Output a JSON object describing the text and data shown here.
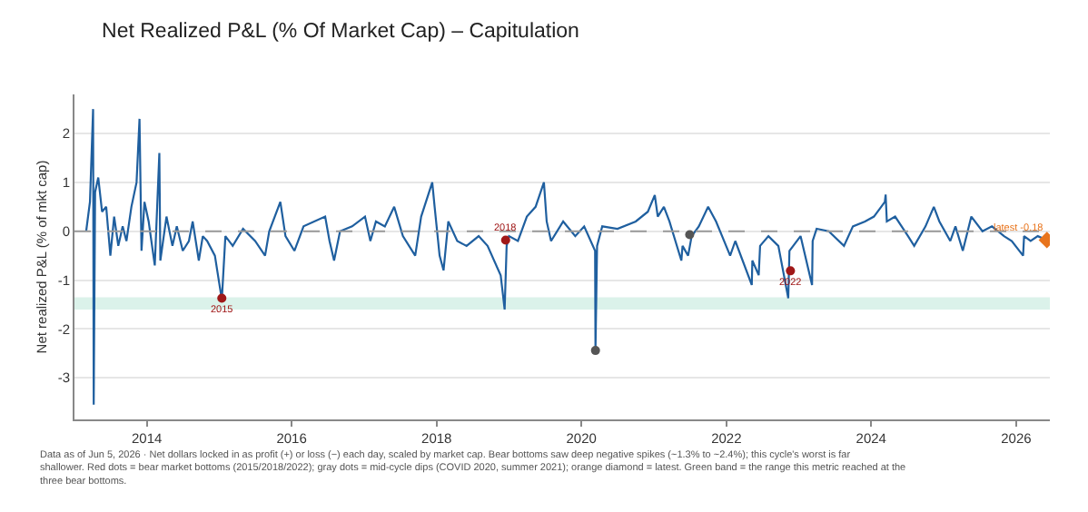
{
  "chart_data": {
    "type": "line",
    "title": "Net Realized P&L (% Of Market Cap) – Capitulation",
    "ylabel": "Net realized P&L (% of mkt cap)",
    "series": [
      {
        "color": "#1f5f9f",
        "marker": "none",
        "line_style": "solid",
        "x": [
          "2013-03-01",
          "2013-03-20",
          "2013-04-05",
          "2013-04-08",
          "2013-04-15",
          "2013-05-01",
          "2013-05-20",
          "2013-06-10",
          "2013-07-01",
          "2013-07-20",
          "2013-08-10",
          "2013-09-01",
          "2013-09-20",
          "2013-10-15",
          "2013-11-10",
          "2013-11-25",
          "2013-12-05",
          "2013-12-20",
          "2014-01-10",
          "2014-02-10",
          "2014-02-20",
          "2014-03-05",
          "2014-03-10",
          "2014-04-10",
          "2014-05-10",
          "2014-06-01",
          "2014-07-01",
          "2014-08-01",
          "2014-08-20",
          "2014-09-20",
          "2014-10-10",
          "2014-11-01",
          "2014-12-10",
          "2015-01-14",
          "2015-02-01",
          "2015-03-10",
          "2015-05-01",
          "2015-07-01",
          "2015-08-20",
          "2015-09-10",
          "2015-11-05",
          "2015-12-01",
          "2016-01-15",
          "2016-03-01",
          "2016-06-18",
          "2016-07-10",
          "2016-08-02",
          "2016-09-01",
          "2016-11-01",
          "2017-01-05",
          "2017-02-01",
          "2017-03-01",
          "2017-04-15",
          "2017-06-01",
          "2017-07-15",
          "2017-09-15",
          "2017-10-15",
          "2017-12-10",
          "2017-12-22",
          "2018-01-16",
          "2018-02-05",
          "2018-03-01",
          "2018-04-15",
          "2018-06-01",
          "2018-08-01",
          "2018-09-15",
          "2018-11-20",
          "2018-12-10",
          "2018-12-20",
          "2019-01-01",
          "2019-02-15",
          "2019-04-01",
          "2019-05-15",
          "2019-06-26",
          "2019-07-10",
          "2019-08-01",
          "2019-10-01",
          "2019-12-01",
          "2020-01-15",
          "2020-03-10",
          "2020-03-12",
          "2020-03-20",
          "2020-04-15",
          "2020-07-01",
          "2020-10-01",
          "2020-12-01",
          "2021-01-05",
          "2021-01-20",
          "2021-02-20",
          "2021-03-20",
          "2021-05-19",
          "2021-05-25",
          "2021-06-22",
          "2021-07-10",
          "2021-08-15",
          "2021-10-01",
          "2021-11-10",
          "2022-01-20",
          "2022-02-15",
          "2022-05-09",
          "2022-05-12",
          "2022-06-13",
          "2022-06-20",
          "2022-08-01",
          "2022-09-20",
          "2022-11-09",
          "2022-11-15",
          "2023-01-10",
          "2023-03-09",
          "2023-03-12",
          "2023-04-01",
          "2023-06-01",
          "2023-08-17",
          "2023-10-01",
          "2023-12-01",
          "2024-01-15",
          "2024-03-10",
          "2024-03-14",
          "2024-03-20",
          "2024-05-01",
          "2024-07-05",
          "2024-08-05",
          "2024-10-01",
          "2024-11-12",
          "2024-12-10",
          "2025-02-03",
          "2025-03-01",
          "2025-04-07",
          "2025-05-20",
          "2025-07-15",
          "2025-09-01",
          "2025-11-01",
          "2025-12-10",
          "2026-02-05",
          "2026-02-10",
          "2026-03-15",
          "2026-04-20",
          "2026-06-05"
        ],
        "values": [
          0.0,
          0.6,
          2.5,
          -3.55,
          0.8,
          1.1,
          0.4,
          0.5,
          -0.5,
          0.3,
          -0.3,
          0.1,
          -0.2,
          0.5,
          1.0,
          2.3,
          -0.4,
          0.6,
          0.2,
          -0.7,
          0.3,
          1.6,
          -0.6,
          0.3,
          -0.3,
          0.1,
          -0.4,
          -0.2,
          0.2,
          -0.6,
          -0.1,
          -0.2,
          -0.5,
          -1.4,
          -0.1,
          -0.3,
          0.05,
          -0.2,
          -0.5,
          0.0,
          0.6,
          -0.1,
          -0.4,
          0.1,
          0.3,
          -0.2,
          -0.6,
          0.0,
          0.1,
          0.3,
          -0.2,
          0.2,
          0.1,
          0.5,
          -0.1,
          -0.5,
          0.3,
          1.0,
          0.5,
          -0.5,
          -0.8,
          0.2,
          -0.2,
          -0.3,
          -0.1,
          -0.3,
          -0.9,
          -1.6,
          -0.3,
          -0.1,
          -0.2,
          0.3,
          0.5,
          1.0,
          0.2,
          -0.2,
          0.2,
          -0.1,
          0.1,
          -0.4,
          -2.44,
          -0.3,
          0.1,
          0.05,
          0.2,
          0.4,
          0.74,
          0.3,
          0.5,
          0.2,
          -0.6,
          -0.3,
          -0.5,
          -0.1,
          0.1,
          0.5,
          0.2,
          -0.5,
          -0.2,
          -1.1,
          -0.6,
          -0.9,
          -0.3,
          -0.1,
          -0.3,
          -1.37,
          -0.4,
          -0.1,
          -1.1,
          -0.2,
          0.05,
          0.0,
          -0.3,
          0.1,
          0.2,
          0.3,
          0.6,
          0.75,
          0.2,
          0.3,
          -0.1,
          -0.3,
          0.1,
          0.5,
          0.2,
          -0.2,
          0.1,
          -0.4,
          0.3,
          0.0,
          0.1,
          -0.1,
          -0.2,
          -0.5,
          -0.1,
          -0.2,
          -0.1,
          -0.18
        ]
      },
      {
        "type": "scatter",
        "marker": "circle",
        "x": [
          "2015-01-14",
          "2018-12-15",
          "2022-11-20"
        ],
        "values": [
          -1.37,
          -0.18,
          -0.81
        ],
        "colors": [
          "#a01818",
          "#a01818",
          "#a01818"
        ]
      },
      {
        "type": "scatter",
        "marker": "circle",
        "x": [
          "2020-03-12",
          "2021-06-30"
        ],
        "values": [
          -2.44,
          -0.07
        ],
        "colors": [
          "#555555",
          "#555555"
        ]
      },
      {
        "type": "scatter",
        "marker": "diamond",
        "x": [
          "2026-06-05"
        ],
        "values": [
          -0.18
        ],
        "colors": [
          "#e8741c"
        ]
      }
    ],
    "xlim": [
      "2013-01-01",
      "2026-06-20"
    ],
    "xticks": [
      "2014",
      "2016",
      "2018",
      "2020",
      "2022",
      "2024",
      "2026"
    ],
    "ylim": [
      -3.85,
      2.8
    ],
    "yticks": [
      -3,
      -2,
      -1,
      0,
      1,
      2
    ],
    "grid": "y",
    "ref_lines": [
      {
        "axis": "y",
        "value": 0,
        "color": "#9a9a9a",
        "line_style": "dashed"
      }
    ],
    "bands": [
      {
        "axis": "y",
        "from": -1.6,
        "to": -1.35,
        "color": "#dbf2ea"
      }
    ],
    "annotations": [
      {
        "text": "2015",
        "x": "2015-01-14",
        "y": -1.37
      },
      {
        "text": "2018",
        "x": "2018-12-15",
        "y": -0.18
      },
      {
        "text": "2022",
        "x": "2022-11-20",
        "y": -0.81
      },
      {
        "text": "latest -0.18",
        "x": "2026-06-05",
        "y": -0.18
      },
      "Data as of Jun 5, 2026 · Net dollars locked in as profit (+) or loss (−) each day, scaled by market cap. Bear bottoms saw deep negative spikes (~1.3% to ~2.4%); this cycle's worst is far shallower. Red dots = bear market bottoms (2015/2018/2022); gray dots = mid-cycle dips (COVID 2020, summer 2021); orange diamond = latest. Green band = the range this metric reached at the three bear bottoms."
    ]
  }
}
